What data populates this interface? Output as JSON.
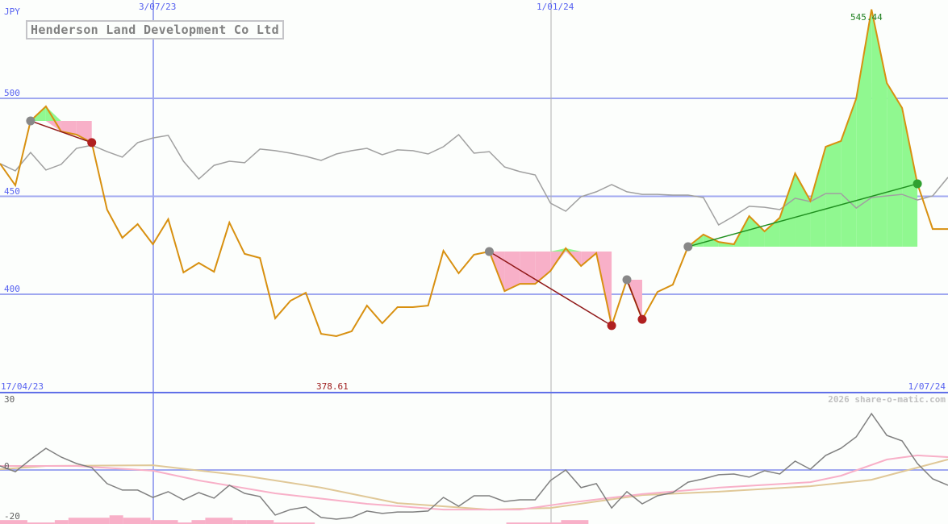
{
  "chart_data": [
    {
      "type": "line",
      "title": "Henderson Land Development Co Ltd",
      "ylabel": "JPY",
      "ylim": [
        333,
        550
      ],
      "yticks": [
        "500",
        "450",
        "400"
      ],
      "ytick_values": [
        500,
        450,
        400
      ],
      "xticks_top": [
        "3/07/23",
        "1/01/24"
      ],
      "x_start_label": "17/04/23",
      "x_end_label": "1/07/24",
      "min_label": "378.61",
      "max_label": "545.44",
      "grid": true,
      "series": [
        {
          "values": [
            466.7,
            455.6,
            488.5,
            495.9,
            483.1,
            481.5,
            477.4,
            443.2,
            428.8,
            435.8,
            425.5,
            438.3,
            411.1,
            416.0,
            411.5,
            436.6,
            420.6,
            418.5,
            387.7,
            396.7,
            400.8,
            379.8,
            378.6,
            381.1,
            394.2,
            385.2,
            393.4,
            393.4,
            394.2,
            422.2,
            410.7,
            420.2,
            421.8,
            401.6,
            405.3,
            405.3,
            411.9,
            423.5,
            414.4,
            421.0,
            384.0,
            407.4,
            387.2,
            401.2,
            404.9,
            424.3,
            430.5,
            426.7,
            425.5,
            439.9,
            432.1,
            439.1,
            461.7,
            447.7,
            475.3,
            478.2,
            500.0,
            545.4,
            507.8,
            495.1,
            456.4,
            433.3,
            433.3
          ]
        },
        {
          "values": [
            466.7,
            463.0,
            472.4,
            463.4,
            466.3,
            474.5,
            476.1,
            472.8,
            470.0,
            477.4,
            479.8,
            481.1,
            467.9,
            458.8,
            465.8,
            467.9,
            467.1,
            474.1,
            473.3,
            472.0,
            470.4,
            468.3,
            471.6,
            473.3,
            474.5,
            471.2,
            473.7,
            473.3,
            471.6,
            475.3,
            481.5,
            472.0,
            472.8,
            465.0,
            462.6,
            460.9,
            446.5,
            442.4,
            449.8,
            452.3,
            456.0,
            452.3,
            451.0,
            451.0,
            450.6,
            450.6,
            449.4,
            435.4,
            439.9,
            444.9,
            444.4,
            443.2,
            449.0,
            447.3,
            451.4,
            451.4,
            444.0,
            449.4,
            450.2,
            451.0,
            448.1,
            450.2,
            459.7
          ]
        }
      ],
      "trades": [
        {
          "from": 2,
          "to": 6,
          "result": "loss"
        },
        {
          "from": 32,
          "to": 40,
          "result": "loss"
        },
        {
          "from": 41,
          "to": 42,
          "result": "loss"
        },
        {
          "from": 45,
          "to": 60,
          "result": "gain"
        }
      ],
      "colors": {
        "price": "#d89010",
        "compare": "#a0a0a0",
        "gain": "#90f890",
        "loss": "#f8b0c8",
        "loss_line": "#901818",
        "gain_line": "#209020",
        "grid": "#a0a8f0"
      }
    },
    {
      "type": "line",
      "ylim": [
        -22,
        32
      ],
      "yticks": [
        "30",
        "0",
        "-20"
      ],
      "ytick_values": [
        30,
        0,
        -20
      ],
      "series": [
        {
          "values": [
            1.7,
            -0.7,
            4.4,
            9.1,
            5.4,
            2.7,
            1.0,
            -5.7,
            -8.4,
            -8.4,
            -11.5,
            -9.1,
            -12.5,
            -9.5,
            -11.8,
            -6.4,
            -9.8,
            -11.1,
            -18.9,
            -16.6,
            -15.5,
            -19.9,
            -20.6,
            -19.9,
            -17.2,
            -18.2,
            -17.6,
            -17.6,
            -17.2,
            -11.5,
            -15.2,
            -10.8,
            -10.8,
            -13.2,
            -12.5,
            -12.5,
            -4.4,
            0,
            -7.4,
            -5.7,
            -15.9,
            -9.1,
            -14.2,
            -10.8,
            -9.5,
            -5.1,
            -3.7,
            -2.0,
            -1.7,
            -3.0,
            -0.3,
            -1.7,
            3.7,
            0.3,
            6.1,
            9.1,
            13.9,
            23.6,
            14.5,
            12.2,
            2.7,
            -3.7,
            -6.4
          ]
        },
        {
          "points": [
            [
              0,
              1.7
            ],
            [
              5,
              1.7
            ],
            [
              10,
              -0.3
            ],
            [
              13,
              -4.4
            ],
            [
              18,
              -9.8
            ],
            [
              24,
              -14.2
            ],
            [
              29,
              -16.6
            ],
            [
              34,
              -16.6
            ],
            [
              37,
              -13.9
            ],
            [
              42,
              -10.1
            ],
            [
              47,
              -7.4
            ],
            [
              53,
              -5.1
            ],
            [
              55,
              -2.4
            ],
            [
              58,
              4.4
            ],
            [
              60,
              6.1
            ],
            [
              62,
              5.4
            ]
          ]
        },
        {
          "points": [
            [
              0,
              0.3
            ],
            [
              3,
              1.7
            ],
            [
              10,
              2.0
            ],
            [
              16,
              -2.4
            ],
            [
              21,
              -7.4
            ],
            [
              26,
              -13.9
            ],
            [
              32,
              -16.6
            ],
            [
              36,
              -15.9
            ],
            [
              42,
              -10.5
            ],
            [
              47,
              -9.1
            ],
            [
              53,
              -6.8
            ],
            [
              57,
              -4.1
            ],
            [
              60,
              1.0
            ],
            [
              62,
              4.4
            ]
          ]
        }
      ],
      "histogram": [
        [
          0,
          2,
          -21
        ],
        [
          2,
          4,
          -22
        ],
        [
          4,
          5,
          -21
        ],
        [
          5,
          8,
          -20
        ],
        [
          8,
          9,
          -19
        ],
        [
          9,
          11,
          -20
        ],
        [
          11,
          13,
          -21
        ],
        [
          13,
          14,
          -22
        ],
        [
          14,
          15,
          -21
        ],
        [
          15,
          17,
          -20
        ],
        [
          17,
          18,
          -21
        ],
        [
          18,
          20,
          -21
        ],
        [
          20,
          23,
          -22
        ],
        [
          23,
          24,
          -23
        ],
        [
          25,
          26,
          -23
        ],
        [
          32,
          35,
          -23
        ],
        [
          37,
          41,
          -22
        ],
        [
          41,
          43,
          -21
        ],
        [
          56,
          62,
          -23
        ]
      ],
      "colors": {
        "osc": "#808080",
        "ma_fast": "#f8b0c8",
        "ma_slow": "#e0c898"
      }
    }
  ],
  "watermark": "2026 share-o-matic.com"
}
